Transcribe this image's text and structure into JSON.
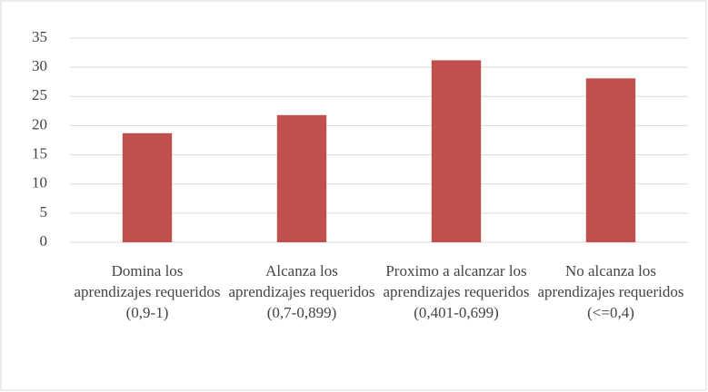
{
  "chart_data": {
    "type": "bar",
    "categories": [
      "Domina los aprendizajes requeridos (0,9-1)",
      "Alcanza los aprendizajes requeridos (0,7-0,899)",
      "Proximo a alcanzar los aprendizajes requeridos (0,401-0,699)",
      "No alcanza los aprendizajes requeridos (<=0,4)"
    ],
    "values": [
      18.7,
      21.8,
      31.2,
      28.1
    ],
    "color": "#c0504d",
    "ylim": [
      0,
      35
    ],
    "yticks": [
      0,
      5,
      10,
      15,
      20,
      25,
      30,
      35
    ],
    "grid": true
  }
}
